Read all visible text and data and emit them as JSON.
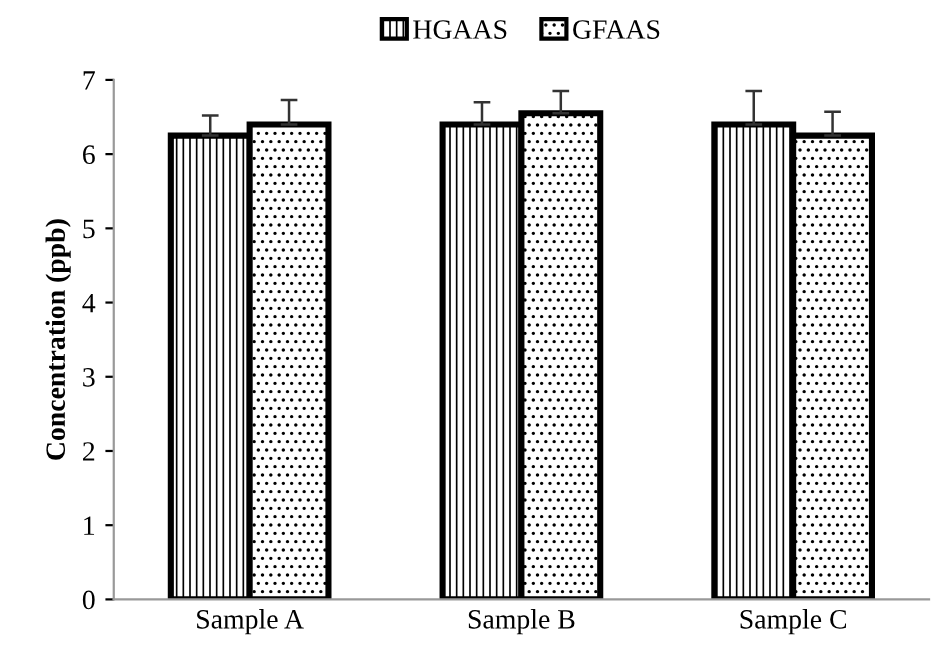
{
  "chart_data": {
    "type": "bar",
    "ylabel": "Concentration (ppb)",
    "categories": [
      "Sample A",
      "Sample B",
      "Sample C"
    ],
    "series": [
      {
        "name": "HGAAS",
        "color": "#000000",
        "values": [
          6.25,
          6.4,
          6.4
        ],
        "errors": [
          0.27,
          0.3,
          0.45
        ]
      },
      {
        "name": "GFAAS",
        "color": "#000000",
        "values": [
          6.4,
          6.55,
          6.25
        ],
        "errors": [
          0.33,
          0.3,
          0.32
        ]
      }
    ],
    "ylim": [
      0,
      7
    ],
    "yticks": [
      0,
      1,
      2,
      3,
      4,
      5,
      6,
      7
    ],
    "grid": false,
    "legend": "top"
  }
}
